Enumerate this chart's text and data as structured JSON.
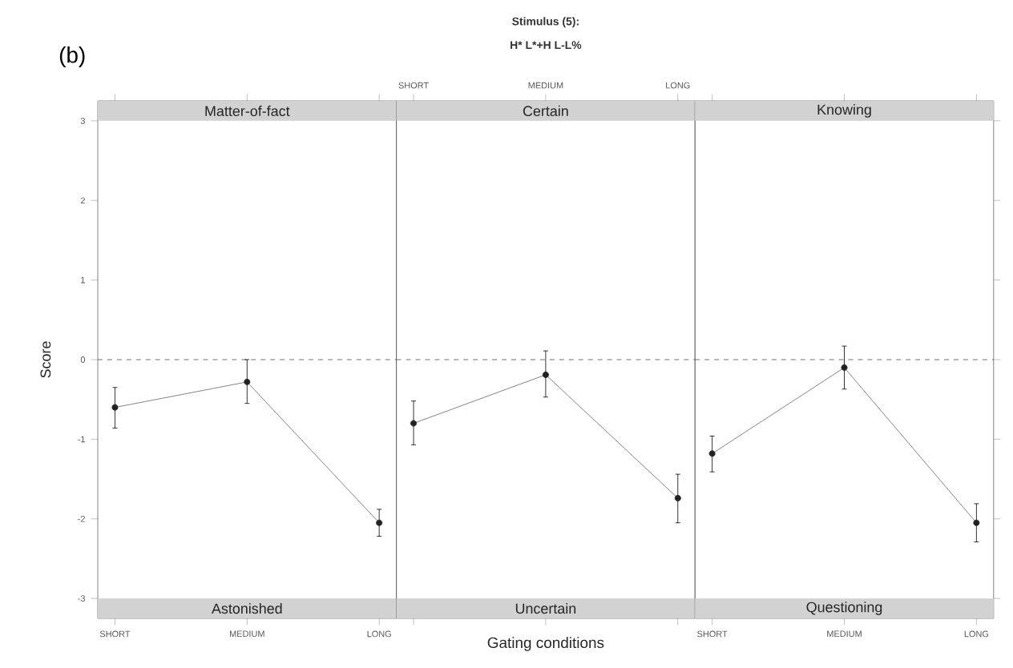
{
  "chart_data": [
    {
      "type": "line",
      "title": "Matter-of-fact",
      "ylabel": "Score",
      "annotations": [
        "Astonished",
        "(b)"
      ],
      "categories": [
        "SHORT",
        "MEDIUM",
        "LONG"
      ],
      "values": [
        -0.6,
        -0.28,
        -2.05
      ],
      "errors": [
        [
          -0.86,
          -0.35
        ],
        [
          -0.55,
          0.0
        ],
        [
          -2.22,
          -1.88
        ]
      ],
      "color": "#222222",
      "marker": "circle",
      "ylim": [
        -3.25,
        3.25
      ],
      "yticks": [
        -3,
        -2,
        -1,
        0,
        1,
        2,
        3
      ],
      "ref_lines": [
        {
          "axis": "y",
          "value": 0,
          "line_style": "dashed"
        }
      ],
      "grid": false
    },
    {
      "type": "line",
      "title": "Certain",
      "xlabel": "Gating conditions",
      "annotations": [
        "Uncertain",
        "Stimulus (5):",
        "H* L*+H L-L%"
      ],
      "categories": [
        "SHORT",
        "MEDIUM",
        "LONG"
      ],
      "values": [
        -0.8,
        -0.19,
        -1.74
      ],
      "errors": [
        [
          -1.07,
          -0.52
        ],
        [
          -0.47,
          0.11
        ],
        [
          -2.05,
          -1.44
        ]
      ],
      "color": "#222222",
      "marker": "circle",
      "ylim": [
        -3.25,
        3.25
      ],
      "yticks": [
        -3,
        -2,
        -1,
        0,
        1,
        2,
        3
      ],
      "tick_labels": "x",
      "ref_lines": [
        {
          "axis": "y",
          "value": 0,
          "line_style": "dashed"
        }
      ],
      "grid": false
    },
    {
      "type": "line",
      "title": "Knowing",
      "annotations": [
        "Questioning"
      ],
      "categories": [
        "SHORT",
        "MEDIUM",
        "LONG"
      ],
      "values": [
        -1.18,
        -0.1,
        -2.05
      ],
      "errors": [
        [
          -1.41,
          -0.96
        ],
        [
          -0.37,
          0.17
        ],
        [
          -2.29,
          -1.81
        ]
      ],
      "color": "#222222",
      "marker": "circle",
      "ylim": [
        -3.25,
        3.25
      ],
      "yticks": [
        -3,
        -2,
        -1,
        0,
        1,
        2,
        3
      ],
      "tick_labels": "x",
      "ref_lines": [
        {
          "axis": "y",
          "value": 0,
          "line_style": "dashed"
        }
      ],
      "grid": false
    }
  ]
}
